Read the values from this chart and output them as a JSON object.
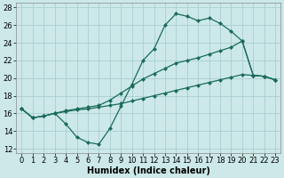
{
  "xlabel": "Humidex (Indice chaleur)",
  "bg_color": "#cce8e8",
  "line_color": "#1a6b5a",
  "grid_color": "#aacece",
  "xlim": [
    -0.5,
    23.5
  ],
  "ylim": [
    11.5,
    28.5
  ],
  "xticks": [
    0,
    1,
    2,
    3,
    4,
    5,
    6,
    7,
    8,
    9,
    10,
    11,
    12,
    13,
    14,
    15,
    16,
    17,
    18,
    19,
    20,
    21,
    22,
    23
  ],
  "yticks": [
    12,
    14,
    16,
    18,
    20,
    22,
    24,
    26,
    28
  ],
  "line1_y": [
    16.5,
    15.5,
    15.7,
    16.0,
    14.8,
    13.3,
    12.7,
    12.5,
    14.3,
    16.8,
    19.3,
    22.0,
    23.3,
    26.0,
    27.3,
    27.0,
    26.5,
    26.8,
    26.2,
    25.3,
    24.2,
    20.3,
    20.2,
    19.8
  ],
  "line2_y": [
    16.5,
    15.5,
    15.7,
    16.0,
    16.3,
    16.5,
    16.7,
    16.9,
    17.5,
    18.3,
    19.1,
    19.9,
    20.5,
    21.1,
    21.7,
    22.0,
    22.3,
    22.7,
    23.1,
    23.5,
    24.2,
    20.3,
    20.2,
    19.8
  ],
  "line3_y": [
    16.5,
    15.5,
    15.7,
    16.0,
    16.2,
    16.4,
    16.5,
    16.7,
    16.9,
    17.1,
    17.4,
    17.7,
    18.0,
    18.3,
    18.6,
    18.9,
    19.2,
    19.5,
    19.8,
    20.1,
    20.4,
    20.3,
    20.2,
    19.8
  ],
  "xlabel_fontsize": 7,
  "tick_fontsize": 6,
  "linewidth": 0.9,
  "markersize": 2.5
}
